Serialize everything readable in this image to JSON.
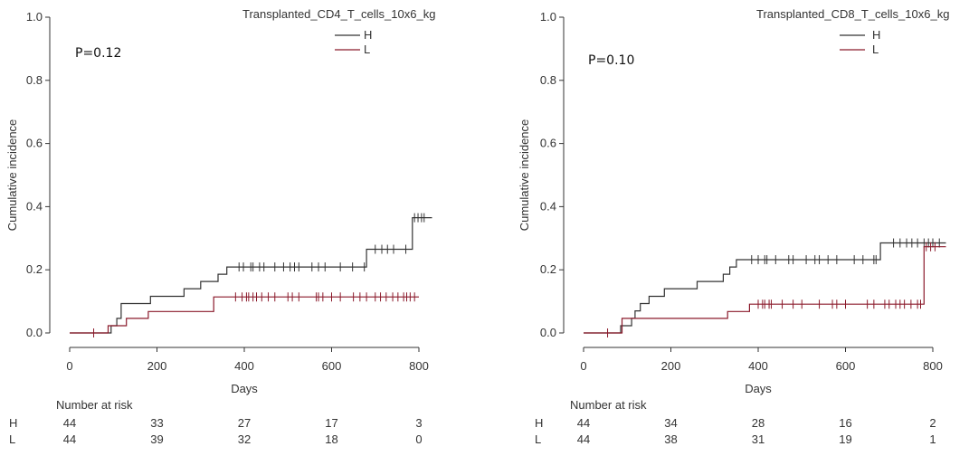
{
  "chart_data": [
    {
      "type": "line",
      "title": "",
      "xlabel": "Days",
      "ylabel": "Cumulative incidence",
      "xlim": [
        0,
        800
      ],
      "ylim": [
        0,
        1.0
      ],
      "xticks": [
        0,
        200,
        400,
        600,
        800
      ],
      "yticks": [
        0.0,
        0.2,
        0.4,
        0.6,
        0.8,
        1.0
      ],
      "xtick_labels": [
        "0",
        "200",
        "400",
        "600",
        "800"
      ],
      "ytick_labels": [
        "0.0",
        "0.2",
        "0.4",
        "0.6",
        "0.8",
        "1.0"
      ],
      "legend_title": "Transplanted_CD4_T_cells_10x6_kg",
      "annotation": "P=0.12",
      "series": [
        {
          "name": "H",
          "color": "#333333",
          "steps": [
            [
              0,
              0
            ],
            [
              95,
              0
            ],
            [
              95,
              0.023
            ],
            [
              108,
              0.023
            ],
            [
              108,
              0.046
            ],
            [
              118,
              0.046
            ],
            [
              118,
              0.093
            ],
            [
              185,
              0.093
            ],
            [
              185,
              0.116
            ],
            [
              262,
              0.116
            ],
            [
              262,
              0.14
            ],
            [
              300,
              0.14
            ],
            [
              300,
              0.163
            ],
            [
              340,
              0.163
            ],
            [
              340,
              0.186
            ],
            [
              360,
              0.186
            ],
            [
              360,
              0.209
            ],
            [
              680,
              0.209
            ],
            [
              680,
              0.265
            ],
            [
              785,
              0.265
            ],
            [
              785,
              0.365
            ],
            [
              830,
              0.365
            ]
          ],
          "censor": [
            388,
            398,
            415,
            420,
            435,
            445,
            470,
            490,
            505,
            515,
            525,
            555,
            570,
            585,
            620,
            648,
            675,
            700,
            715,
            728,
            742,
            770,
            790,
            798,
            806,
            812
          ]
        },
        {
          "name": "L",
          "color": "#8b1a2b",
          "steps": [
            [
              0,
              0
            ],
            [
              88,
              0
            ],
            [
              88,
              0.023
            ],
            [
              130,
              0.023
            ],
            [
              130,
              0.046
            ],
            [
              180,
              0.046
            ],
            [
              180,
              0.068
            ],
            [
              330,
              0.068
            ],
            [
              330,
              0.114
            ],
            [
              800,
              0.114
            ]
          ],
          "censor": [
            55,
            380,
            395,
            405,
            410,
            420,
            428,
            440,
            455,
            470,
            500,
            510,
            525,
            565,
            570,
            580,
            600,
            620,
            650,
            665,
            680,
            700,
            712,
            725,
            740,
            752,
            765,
            772,
            780,
            790
          ]
        }
      ],
      "risk_table": {
        "header": "Number at risk",
        "times": [
          0,
          200,
          400,
          600,
          800
        ],
        "rows": [
          {
            "label": "H",
            "values": [
              "44",
              "33",
              "27",
              "17",
              "3"
            ]
          },
          {
            "label": "L",
            "values": [
              "44",
              "39",
              "32",
              "18",
              "0"
            ]
          }
        ]
      }
    },
    {
      "type": "line",
      "title": "",
      "xlabel": "Days",
      "ylabel": "Cumulative incidence",
      "xlim": [
        0,
        800
      ],
      "ylim": [
        0,
        1.0
      ],
      "xticks": [
        0,
        200,
        400,
        600,
        800
      ],
      "yticks": [
        0.0,
        0.2,
        0.4,
        0.6,
        0.8,
        1.0
      ],
      "xtick_labels": [
        "0",
        "200",
        "400",
        "600",
        "800"
      ],
      "ytick_labels": [
        "0.0",
        "0.2",
        "0.4",
        "0.6",
        "0.8",
        "1.0"
      ],
      "legend_title": "Transplanted_CD8_T_cells_10x6_kg",
      "annotation": "P=0.10",
      "series": [
        {
          "name": "H",
          "color": "#333333",
          "steps": [
            [
              0,
              0
            ],
            [
              85,
              0
            ],
            [
              85,
              0.023
            ],
            [
              110,
              0.023
            ],
            [
              110,
              0.046
            ],
            [
              118,
              0.046
            ],
            [
              118,
              0.07
            ],
            [
              130,
              0.07
            ],
            [
              130,
              0.093
            ],
            [
              150,
              0.093
            ],
            [
              150,
              0.116
            ],
            [
              185,
              0.116
            ],
            [
              185,
              0.14
            ],
            [
              260,
              0.14
            ],
            [
              260,
              0.163
            ],
            [
              320,
              0.163
            ],
            [
              320,
              0.186
            ],
            [
              335,
              0.186
            ],
            [
              335,
              0.209
            ],
            [
              350,
              0.209
            ],
            [
              350,
              0.232
            ],
            [
              680,
              0.232
            ],
            [
              680,
              0.285
            ],
            [
              830,
              0.285
            ]
          ],
          "censor": [
            385,
            400,
            415,
            420,
            440,
            470,
            480,
            510,
            530,
            540,
            560,
            580,
            620,
            640,
            665,
            670,
            710,
            725,
            740,
            752,
            765,
            780,
            790,
            800,
            815
          ]
        },
        {
          "name": "L",
          "color": "#8b1a2b",
          "steps": [
            [
              0,
              0
            ],
            [
              88,
              0
            ],
            [
              88,
              0.046
            ],
            [
              330,
              0.046
            ],
            [
              330,
              0.068
            ],
            [
              380,
              0.068
            ],
            [
              380,
              0.091
            ],
            [
              780,
              0.091
            ],
            [
              780,
              0.273
            ],
            [
              830,
              0.273
            ]
          ],
          "censor": [
            55,
            400,
            410,
            415,
            425,
            430,
            455,
            480,
            500,
            540,
            570,
            580,
            600,
            650,
            665,
            690,
            700,
            715,
            725,
            735,
            750,
            765,
            772,
            785,
            795,
            805
          ]
        }
      ],
      "risk_table": {
        "header": "Number at risk",
        "times": [
          0,
          200,
          400,
          600,
          800
        ],
        "rows": [
          {
            "label": "H",
            "values": [
              "44",
              "34",
              "28",
              "16",
              "2"
            ]
          },
          {
            "label": "L",
            "values": [
              "44",
              "38",
              "31",
              "19",
              "1"
            ]
          }
        ]
      }
    }
  ]
}
